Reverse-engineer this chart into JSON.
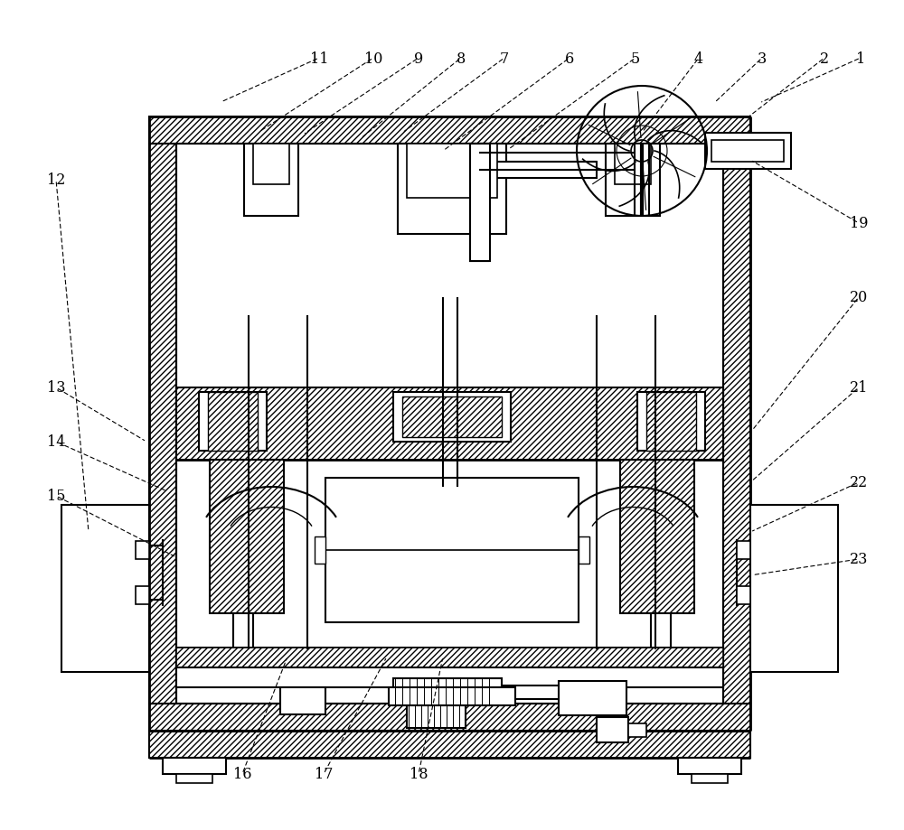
{
  "bg_color": "#ffffff",
  "lc": "#000000",
  "figure_width": 10.0,
  "figure_height": 9.2,
  "labels_data": [
    [
      "1",
      952,
      65,
      840,
      115
    ],
    [
      "2",
      912,
      65,
      822,
      135
    ],
    [
      "3",
      843,
      65,
      790,
      115
    ],
    [
      "4",
      773,
      65,
      710,
      148
    ],
    [
      "5",
      703,
      65,
      560,
      168
    ],
    [
      "6",
      630,
      65,
      490,
      168
    ],
    [
      "7",
      558,
      65,
      445,
      148
    ],
    [
      "8",
      510,
      65,
      398,
      155
    ],
    [
      "9",
      463,
      65,
      335,
      150
    ],
    [
      "10",
      413,
      65,
      285,
      148
    ],
    [
      "11",
      353,
      65,
      242,
      115
    ],
    [
      "12",
      62,
      200,
      98,
      590
    ],
    [
      "13",
      62,
      430,
      162,
      490
    ],
    [
      "14",
      62,
      490,
      185,
      545
    ],
    [
      "15",
      62,
      550,
      195,
      618
    ],
    [
      "16",
      268,
      858,
      318,
      728
    ],
    [
      "17",
      358,
      858,
      428,
      728
    ],
    [
      "18",
      463,
      858,
      490,
      728
    ],
    [
      "19",
      950,
      248,
      830,
      178
    ],
    [
      "20",
      950,
      330,
      830,
      480
    ],
    [
      "21",
      950,
      430,
      830,
      535
    ],
    [
      "22",
      950,
      535,
      830,
      590
    ],
    [
      "23",
      950,
      620,
      830,
      638
    ]
  ]
}
